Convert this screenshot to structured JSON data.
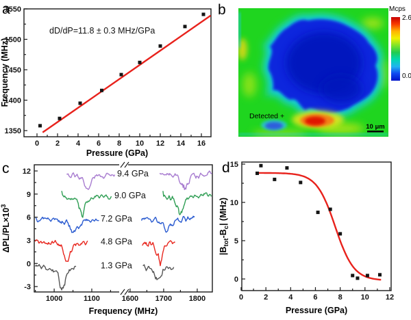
{
  "figure": {
    "panel_labels": {
      "a": "a",
      "b": "b",
      "c": "c",
      "d": "d"
    }
  },
  "chart_data": [
    {
      "panel": "a",
      "type": "scatter",
      "annotation": "dD/dP=11.8 ± 0.3 MHz/GPa",
      "xlabel": "Pressure (GPa)",
      "ylabel": "Frequency (MHz)",
      "x": [
        0.3,
        2.2,
        4.2,
        6.3,
        8.2,
        10.0,
        12.0,
        14.4,
        16.2
      ],
      "y": [
        1358,
        1370,
        1395,
        1416,
        1442,
        1462,
        1489,
        1521,
        1541
      ],
      "fit_line": {
        "x1": 0.55,
        "y1": 1347,
        "x2": 16.9,
        "y2": 1539,
        "color": "#e8221c"
      },
      "xlim": [
        -1.3,
        16.9
      ],
      "ylim": [
        1340,
        1550
      ],
      "xticks": [
        0,
        2,
        4,
        6,
        8,
        10,
        12,
        14,
        16
      ],
      "yticks": [
        1350,
        1400,
        1450,
        1500,
        1550
      ],
      "marker": {
        "shape": "square",
        "color": "#151515",
        "size": 5
      },
      "grid": false,
      "legend": "none"
    },
    {
      "panel": "b",
      "type": "heatmap",
      "annotation": "Detected +",
      "scalebar": "10 μm",
      "colorbar": {
        "title": "Mcps",
        "max": "2.6",
        "min": "0.0",
        "colors": [
          "#c80000",
          "#f83c00",
          "#ffb400",
          "#f0f000",
          "#80e428",
          "#20cc50",
          "#00d8b0",
          "#20b4f0",
          "#1048f0",
          "#0014c8"
        ]
      },
      "description_colors": {
        "background_green": "#1fd51f",
        "region_blue": "#0725dd",
        "hotspot_red": "#e01505"
      }
    },
    {
      "panel": "c",
      "type": "line",
      "xlabel": "Frequency (MHz)",
      "ylabel": "ΔPL/PL×10³",
      "ylabel_parts": [
        {
          "t": "ΔPL/PL×10"
        },
        {
          "t": "3",
          "shift": "sup"
        }
      ],
      "xlim_left": [
        947,
        1182
      ],
      "xlim_right": [
        1588,
        1845
      ],
      "xticks_left": [
        1000,
        1100
      ],
      "xticks_right": [
        1600,
        1700,
        1800
      ],
      "ylim": [
        -3.7,
        12.8
      ],
      "yticks": [
        -3,
        0,
        3,
        6,
        9,
        12
      ],
      "axis_break": true,
      "series": [
        {
          "label": "1.3 GPa",
          "color": "#555555",
          "baseline": -0.3,
          "left": {
            "range": [
              950,
              1058
            ],
            "dip": {
              "center": 1021,
              "depth": 2.6,
              "gamma": 11
            }
          },
          "right": {
            "range": [
              1638,
              1730
            ],
            "dip": {
              "center": 1683,
              "depth": 2.0,
              "gamma": 12
            }
          }
        },
        {
          "label": "4.8 GPa",
          "color": "#e8261e",
          "baseline": 2.8,
          "left": {
            "range": [
              949,
              1090
            ],
            "dip": {
              "center": 1034,
              "depth": 2.7,
              "gamma": 9
            }
          },
          "right": {
            "range": [
              1636,
              1734
            ],
            "dip": {
              "center": 1690,
              "depth": 2.6,
              "gamma": 11
            }
          }
        },
        {
          "label": "7.2 GPa",
          "color": "#2a5bd0",
          "baseline": 5.8,
          "left": {
            "range": [
              951,
              1120
            ],
            "dip": {
              "center": 1052,
              "depth": 1.9,
              "gamma": 12
            }
          },
          "right": {
            "range": [
              1634,
              1792
            ],
            "dip": {
              "center": 1709,
              "depth": 1.5,
              "gamma": 12
            }
          }
        },
        {
          "label": "9.0 GPa",
          "color": "#2f9e54",
          "baseline": 8.8,
          "start_spike": 0.6,
          "left": {
            "range": [
              1020,
              1152
            ],
            "dip": {
              "center": 1076,
              "depth": 2.3,
              "gamma": 10
            }
          },
          "right": {
            "range": [
              1698,
              1842
            ],
            "dip": {
              "center": 1750,
              "depth": 2.3,
              "gamma": 12
            }
          }
        },
        {
          "label": "9.4 GPa",
          "color": "#a87cd0",
          "baseline": 11.65,
          "left": {
            "range": [
              1033,
              1162
            ],
            "dip": {
              "center": 1088,
              "depth": 2.0,
              "gamma": 11
            }
          },
          "right": {
            "range": [
              1688,
              1845
            ],
            "dip": {
              "center": 1764,
              "depth": 1.9,
              "gamma": 13
            }
          }
        }
      ]
    },
    {
      "panel": "d",
      "type": "scatter",
      "xlabel": "Pressure (GPa)",
      "ylabel": "|Btot-Bc| (MHz)",
      "ylabel_parts": [
        {
          "t": "|B"
        },
        {
          "t": "tot",
          "shift": "sub"
        },
        {
          "t": "-B"
        },
        {
          "t": "c",
          "shift": "sub"
        },
        {
          "t": "| (MHz)"
        }
      ],
      "x": [
        1.3,
        1.6,
        2.7,
        3.7,
        4.8,
        6.2,
        7.2,
        8.0,
        9.0,
        9.4,
        10.2,
        11.2
      ],
      "y": [
        13.8,
        14.8,
        13.0,
        14.5,
        12.6,
        8.7,
        9.1,
        5.9,
        0.45,
        0.1,
        0.45,
        0.55
      ],
      "fit_sigmoid": {
        "high": 13.85,
        "low": -0.2,
        "center": 7.6,
        "width": 0.75,
        "xstart": 1.3,
        "xend": 11.35,
        "color": "#e8221c"
      },
      "xlim": [
        0,
        12.1
      ],
      "ylim": [
        -1.5,
        15.3
      ],
      "xticks": [
        0,
        2,
        4,
        6,
        8,
        10,
        12
      ],
      "yticks": [
        0,
        5,
        10,
        15
      ],
      "marker": {
        "shape": "square",
        "color": "#151515",
        "size": 5
      },
      "grid": false,
      "legend": "none"
    }
  ]
}
